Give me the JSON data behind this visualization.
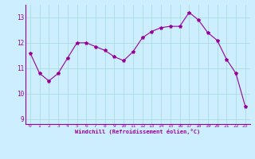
{
  "x": [
    0,
    1,
    2,
    3,
    4,
    5,
    6,
    7,
    8,
    9,
    10,
    11,
    12,
    13,
    14,
    15,
    16,
    17,
    18,
    19,
    20,
    21,
    22,
    23
  ],
  "y": [
    11.6,
    10.8,
    10.5,
    10.8,
    11.4,
    12.0,
    12.0,
    11.85,
    11.7,
    11.45,
    11.3,
    11.65,
    12.2,
    12.45,
    12.6,
    12.65,
    12.65,
    13.2,
    12.9,
    12.4,
    12.1,
    11.35,
    10.8,
    9.5
  ],
  "line_color": "#990099",
  "marker": "*",
  "marker_color": "#990099",
  "bg_color": "#cceeff",
  "grid_color": "#aadddd",
  "xlabel": "Windchill (Refroidissement éolien,°C)",
  "xlabel_color": "#990099",
  "tick_color": "#990099",
  "ylim": [
    8.8,
    13.5
  ],
  "xlim": [
    -0.5,
    23.5
  ],
  "yticks": [
    9,
    10,
    11,
    12,
    13
  ],
  "xticks": [
    0,
    1,
    2,
    3,
    4,
    5,
    6,
    7,
    8,
    9,
    10,
    11,
    12,
    13,
    14,
    15,
    16,
    17,
    18,
    19,
    20,
    21,
    22,
    23
  ]
}
